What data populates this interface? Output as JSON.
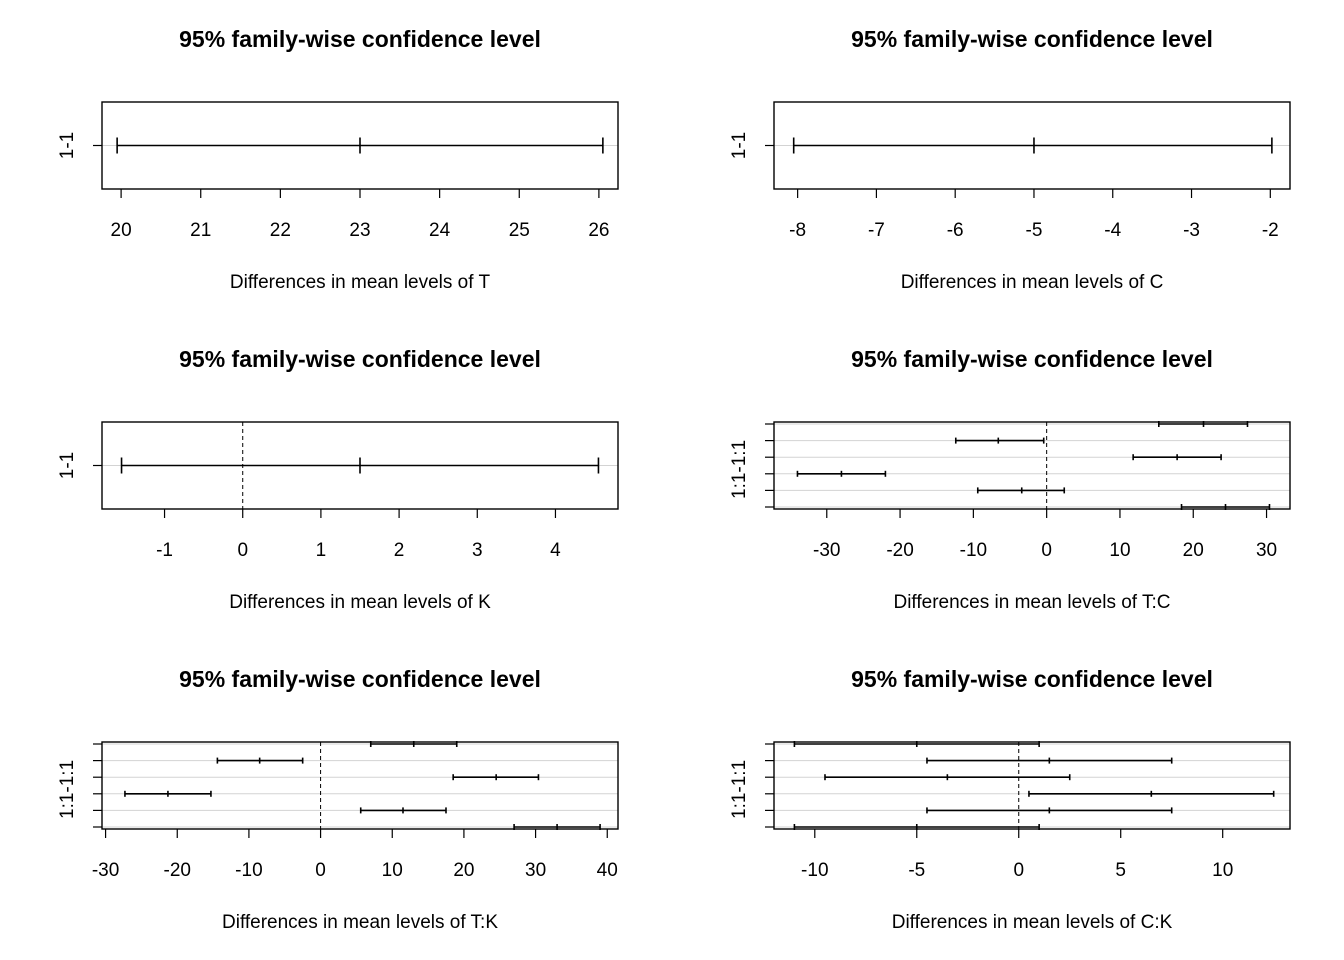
{
  "chart_data": [
    {
      "type": "interval",
      "title": "95% family-wise confidence level",
      "xlabel": "Differences in mean levels of T",
      "xlim": [
        19.76,
        26.24
      ],
      "xticks": [
        20,
        21,
        22,
        23,
        24,
        25,
        26
      ],
      "yticks": [
        "1-1"
      ],
      "zero_line": false,
      "intervals": [
        {
          "lwr": 19.95,
          "diff": 23.0,
          "upr": 26.05
        }
      ]
    },
    {
      "type": "interval",
      "title": "95% family-wise confidence level",
      "xlabel": "Differences in mean levels of C",
      "xlim": [
        -8.3,
        -1.75
      ],
      "xticks": [
        -8,
        -7,
        -6,
        -5,
        -4,
        -3,
        -2
      ],
      "yticks": [
        "1-1"
      ],
      "zero_line": false,
      "intervals": [
        {
          "lwr": -8.05,
          "diff": -5.0,
          "upr": -1.98
        }
      ]
    },
    {
      "type": "interval",
      "title": "95% family-wise confidence level",
      "xlabel": "Differences in mean levels of K",
      "xlim": [
        -1.8,
        4.8
      ],
      "xticks": [
        -1,
        0,
        1,
        2,
        3,
        4
      ],
      "yticks": [
        "1-1"
      ],
      "zero_line": true,
      "intervals": [
        {
          "lwr": -1.55,
          "diff": 1.5,
          "upr": 4.55
        }
      ]
    },
    {
      "type": "interval",
      "title": "95% family-wise confidence level",
      "xlabel": "Differences in mean levels of T:C",
      "xlim": [
        -37.2,
        33.2
      ],
      "xticks": [
        -30,
        -20,
        -10,
        0,
        10,
        20,
        30
      ],
      "yticks": [
        "1:1-1:1"
      ],
      "zero_line": true,
      "intervals": [
        {
          "lwr": 18.4,
          "diff": 24.4,
          "upr": 30.4
        },
        {
          "lwr": -9.4,
          "diff": -3.4,
          "upr": 2.4
        },
        {
          "lwr": -34.0,
          "diff": -28.0,
          "upr": -22.0
        },
        {
          "lwr": 11.8,
          "diff": 17.8,
          "upr": 23.8
        },
        {
          "lwr": -12.4,
          "diff": -6.6,
          "upr": -0.4
        },
        {
          "lwr": 15.3,
          "diff": 21.4,
          "upr": 27.4
        }
      ]
    },
    {
      "type": "interval",
      "title": "95% family-wise confidence level",
      "xlabel": "Differences in mean levels of T:K",
      "xlim": [
        -30.5,
        41.5
      ],
      "xticks": [
        -30,
        -20,
        -10,
        0,
        10,
        20,
        30,
        40
      ],
      "yticks": [
        "1:1-1:1"
      ],
      "zero_line": true,
      "intervals": [
        {
          "lwr": 27.0,
          "diff": 33.0,
          "upr": 39.0
        },
        {
          "lwr": 5.6,
          "diff": 11.5,
          "upr": 17.5
        },
        {
          "lwr": -27.3,
          "diff": -21.3,
          "upr": -15.3
        },
        {
          "lwr": 18.5,
          "diff": 24.5,
          "upr": 30.4
        },
        {
          "lwr": -14.4,
          "diff": -8.5,
          "upr": -2.5
        },
        {
          "lwr": 7.0,
          "diff": 13.0,
          "upr": 19.0
        }
      ]
    },
    {
      "type": "interval",
      "title": "95% family-wise confidence level",
      "xlabel": "Differences in mean levels of C:K",
      "xlim": [
        -12.0,
        13.3
      ],
      "xticks": [
        -10,
        -5,
        0,
        5,
        10
      ],
      "yticks": [
        "1:1-1:1"
      ],
      "zero_line": true,
      "intervals": [
        {
          "lwr": -11.0,
          "diff": -5.0,
          "upr": 1.0
        },
        {
          "lwr": -4.5,
          "diff": 1.5,
          "upr": 7.5
        },
        {
          "lwr": 0.5,
          "diff": 6.5,
          "upr": 12.5
        },
        {
          "lwr": -9.5,
          "diff": -3.5,
          "upr": 2.5
        },
        {
          "lwr": -4.5,
          "diff": 1.5,
          "upr": 7.5
        },
        {
          "lwr": -11.0,
          "diff": -5.0,
          "upr": 1.0
        }
      ]
    }
  ]
}
